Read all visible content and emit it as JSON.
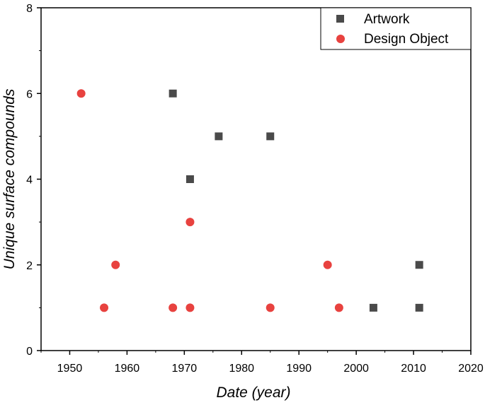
{
  "chart_data": {
    "type": "scatter",
    "xlabel": "Date (year)",
    "ylabel": "Unique surface compounds",
    "xlim": [
      1945,
      2020
    ],
    "ylim": [
      0,
      8
    ],
    "x_ticks": [
      1950,
      1960,
      1970,
      1980,
      1990,
      2000,
      2010,
      2020
    ],
    "y_ticks": [
      0,
      2,
      4,
      6,
      8
    ],
    "grid": false,
    "legend_position": "top-right",
    "series": [
      {
        "name": "Artwork",
        "marker": "square",
        "color": "#4a4a4a",
        "points": [
          {
            "x": 1968,
            "y": 6
          },
          {
            "x": 1971,
            "y": 4
          },
          {
            "x": 1976,
            "y": 5
          },
          {
            "x": 1985,
            "y": 5
          },
          {
            "x": 2003,
            "y": 1
          },
          {
            "x": 2011,
            "y": 1
          },
          {
            "x": 2011,
            "y": 2
          }
        ]
      },
      {
        "name": "Design Object",
        "marker": "circle",
        "color": "#e8423f",
        "points": [
          {
            "x": 1952,
            "y": 6
          },
          {
            "x": 1956,
            "y": 1
          },
          {
            "x": 1958,
            "y": 2
          },
          {
            "x": 1968,
            "y": 1
          },
          {
            "x": 1971,
            "y": 1
          },
          {
            "x": 1971,
            "y": 3
          },
          {
            "x": 1985,
            "y": 1
          },
          {
            "x": 1995,
            "y": 2
          },
          {
            "x": 1997,
            "y": 1
          }
        ]
      }
    ]
  }
}
